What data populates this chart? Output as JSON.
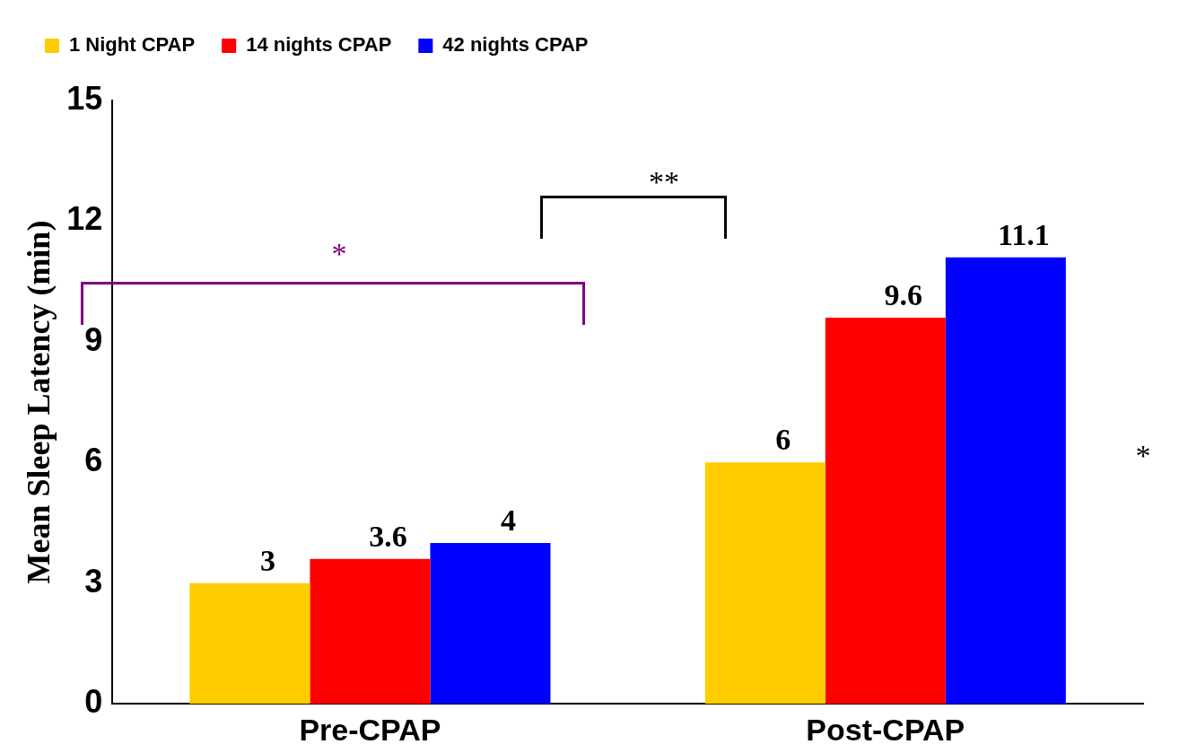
{
  "chart_data": {
    "type": "bar",
    "ylabel": "Mean Sleep Latency (min)",
    "categories": [
      "Pre-CPAP",
      "Post-CPAP"
    ],
    "series": [
      {
        "name": "1 Night CPAP",
        "color": "#ffcc00",
        "values": [
          3,
          6
        ]
      },
      {
        "name": "14 nights CPAP",
        "color": "#ff0000",
        "values": [
          3.6,
          9.6
        ]
      },
      {
        "name": "42 nights CPAP",
        "color": "#0000ff",
        "values": [
          4,
          11.1
        ]
      }
    ],
    "ylim": [
      0,
      15
    ],
    "yticks": [
      0,
      3,
      6,
      9,
      12,
      15
    ],
    "grid": false,
    "legend": "top left",
    "data_labels": true,
    "annotations": [
      "*",
      "**",
      "*"
    ]
  }
}
